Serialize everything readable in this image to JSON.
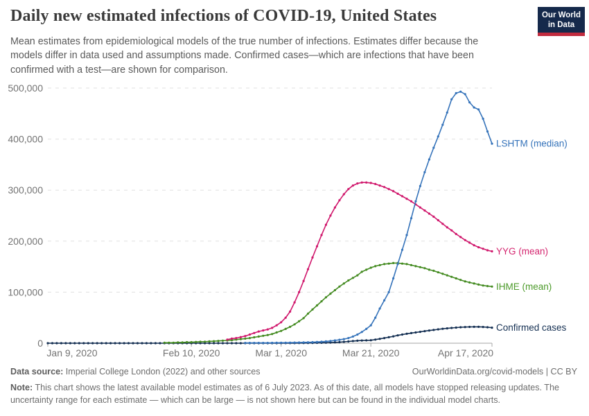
{
  "header": {
    "title": "Daily new estimated infections of COVID-19, United States",
    "subtitle": "Mean estimates from epidemiological models of the true number of infections. Estimates differ because the models differ in data used and assumptions made. Confirmed cases—which are infections that have been confirmed with a test—are shown for comparison.",
    "logo": {
      "line1": "Our World",
      "line2": "in Data",
      "bg_color": "#15294B",
      "stripe_color": "#C12B3E"
    }
  },
  "chart_data": {
    "type": "line",
    "title": "Daily new estimated infections of COVID-19, United States",
    "x_unit": "day",
    "x_start_date": "Jan 9, 2020",
    "x_end_date": "Apr 17, 2020",
    "x_ticks": [
      {
        "day": 0,
        "label": "Jan 9, 2020"
      },
      {
        "day": 32,
        "label": "Feb 10, 2020"
      },
      {
        "day": 52,
        "label": "Mar 1, 2020"
      },
      {
        "day": 72,
        "label": "Mar 21, 2020"
      },
      {
        "day": 99,
        "label": "Apr 17, 2020"
      }
    ],
    "ylim": [
      0,
      500000
    ],
    "y_ticks": [
      0,
      100000,
      200000,
      300000,
      400000,
      500000
    ],
    "grid": "dashed-horizontal",
    "legend_position": "line-end-labels",
    "grid_color": "#E0E0E0",
    "axis_color": "#A5A5A5",
    "tick_label_color": "#737373",
    "series": [
      {
        "name": "LSHTM (median)",
        "color": "#3573BA",
        "label_color": "#3573BA",
        "start_day": 44,
        "values": [
          500,
          500,
          500,
          500,
          600,
          600,
          700,
          800,
          900,
          1000,
          1100,
          1200,
          1400,
          1600,
          1800,
          2100,
          2500,
          3000,
          3600,
          4400,
          5400,
          6600,
          8000,
          10000,
          13000,
          17000,
          22000,
          28000,
          35000,
          50000,
          68000,
          84000,
          100000,
          127000,
          155000,
          183000,
          212000,
          245000,
          278000,
          308000,
          335000,
          360000,
          383000,
          405000,
          428000,
          452000,
          478000,
          490000,
          493000,
          488000,
          472000,
          462000,
          458000,
          440000,
          415000,
          391000
        ]
      },
      {
        "name": "YYG (mean)",
        "color": "#D0176C",
        "label_color": "#D4256F",
        "start_day": 40,
        "values": [
          7000,
          9000,
          10000,
          12000,
          14000,
          17000,
          20000,
          23000,
          25000,
          27000,
          30000,
          35000,
          41000,
          50000,
          62000,
          80000,
          100000,
          122000,
          145000,
          168000,
          190000,
          212000,
          232000,
          250000,
          266000,
          280000,
          292000,
          302000,
          309000,
          313000,
          315000,
          315000,
          314000,
          312000,
          309000,
          306000,
          302000,
          298000,
          293000,
          288000,
          283000,
          278000,
          272000,
          266000,
          260000,
          254000,
          248000,
          241000,
          234000,
          227000,
          221000,
          214000,
          208000,
          202000,
          197000,
          192000,
          188000,
          185000,
          182000,
          180000
        ]
      },
      {
        "name": "IHME (mean)",
        "color": "#448B21",
        "label_color": "#4C9A2A",
        "start_day": 26,
        "values": [
          1000,
          1000,
          1000,
          1500,
          1500,
          2000,
          2000,
          2500,
          3000,
          3000,
          3500,
          4000,
          4500,
          5000,
          5500,
          6000,
          7000,
          8000,
          9000,
          10000,
          11500,
          13000,
          14500,
          16000,
          18000,
          21000,
          24000,
          28000,
          32000,
          37000,
          43000,
          49000,
          58000,
          66000,
          74000,
          82000,
          90000,
          97000,
          104000,
          111000,
          117000,
          123000,
          128000,
          133000,
          140000,
          144000,
          148000,
          151000,
          153000,
          155000,
          156000,
          157000,
          157000,
          156000,
          155000,
          153000,
          151000,
          149000,
          147000,
          144000,
          142000,
          139000,
          136000,
          133000,
          130000,
          127000,
          124000,
          121000,
          119000,
          117000,
          115000,
          113000,
          112000,
          111000
        ]
      },
      {
        "name": "Confirmed cases",
        "color": "#142F52",
        "label_color": "#142F52",
        "start_day": 0,
        "values": [
          0,
          0,
          0,
          0,
          0,
          0,
          0,
          0,
          0,
          0,
          0,
          0,
          0,
          0,
          0,
          0,
          0,
          0,
          0,
          0,
          0,
          0,
          0,
          0,
          0,
          0,
          0,
          0,
          0,
          0,
          0,
          0,
          0,
          0,
          0,
          0,
          0,
          0,
          0,
          0,
          0,
          0,
          0,
          0,
          0,
          0,
          0,
          0,
          0,
          0,
          0,
          0,
          70,
          90,
          120,
          160,
          220,
          300,
          400,
          500,
          650,
          800,
          1000,
          1250,
          1600,
          2100,
          2700,
          3400,
          4200,
          4900,
          5300,
          5600,
          5900,
          7000,
          8500,
          10000,
          11700,
          13500,
          15300,
          17000,
          18500,
          19800,
          21000,
          22300,
          23600,
          24800,
          26000,
          27200,
          28200,
          29100,
          29900,
          30600,
          31200,
          31600,
          31900,
          32000,
          32000,
          31800,
          31200,
          30400
        ]
      }
    ]
  },
  "footer": {
    "datasource_label": "Data source:",
    "datasource_text": " Imperial College London (2022) and other sources",
    "rights": "OurWorldinData.org/covid-models | CC BY",
    "note_label": "Note:",
    "note_text": " This chart shows the latest available model estimates as of 6 July 2023. As of this date, all models have stopped releasing updates. The uncertainty range for each estimate — which can be large — is not shown here but can be found in the individual model charts."
  }
}
